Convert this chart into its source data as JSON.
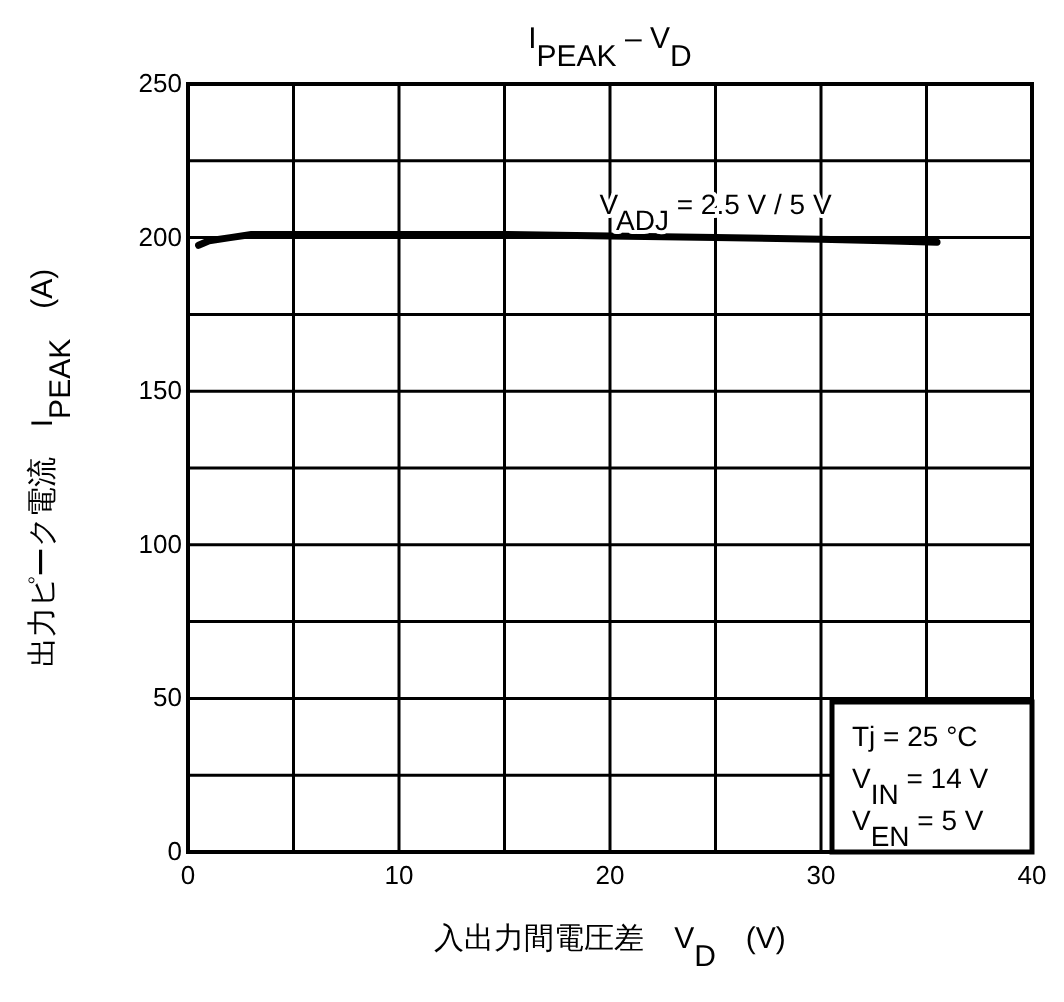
{
  "chart_data": {
    "type": "line",
    "title": "I$_{PEAK}$ – V$_{D}$",
    "xlabel": "入出力間電圧差　V$_{D}$　(V)",
    "ylabel": "出力ピーク電流　I$_{PEAK}$　(A)",
    "x": [
      0.5,
      1,
      2,
      3,
      5,
      10,
      15,
      20,
      25,
      30,
      33,
      35.5
    ],
    "series": [
      {
        "color": "#000000",
        "values": [
          197.5,
          199,
          200,
          201,
          201,
          201,
          201,
          200.5,
          200,
          199.5,
          199,
          198.5
        ]
      }
    ],
    "xlim": [
      0,
      40
    ],
    "ylim": [
      0,
      250
    ],
    "xticks": [
      0,
      {
        "value": 5,
        "label": null
      },
      10,
      {
        "value": 15,
        "label": null
      },
      20,
      {
        "value": 25,
        "label": null
      },
      30,
      {
        "value": 35,
        "label": null
      },
      40
    ],
    "yticks": [
      0,
      {
        "value": 25,
        "label": null
      },
      50,
      {
        "value": 75,
        "label": null
      },
      100,
      {
        "value": 125,
        "label": null
      },
      150,
      {
        "value": 175,
        "label": null
      },
      200,
      {
        "value": 225,
        "label": null
      },
      250
    ],
    "grid": true,
    "marker": "none",
    "line_style": "solid",
    "annotations": [
      {
        "text": "V$_{ADJ}$ = 2.5 V / 5 V",
        "x": 25,
        "y": 200
      },
      "Tj = 25 °C",
      "V$_{IN}$ = 14 V",
      "V$_{EN}$ = 5 V"
    ]
  }
}
